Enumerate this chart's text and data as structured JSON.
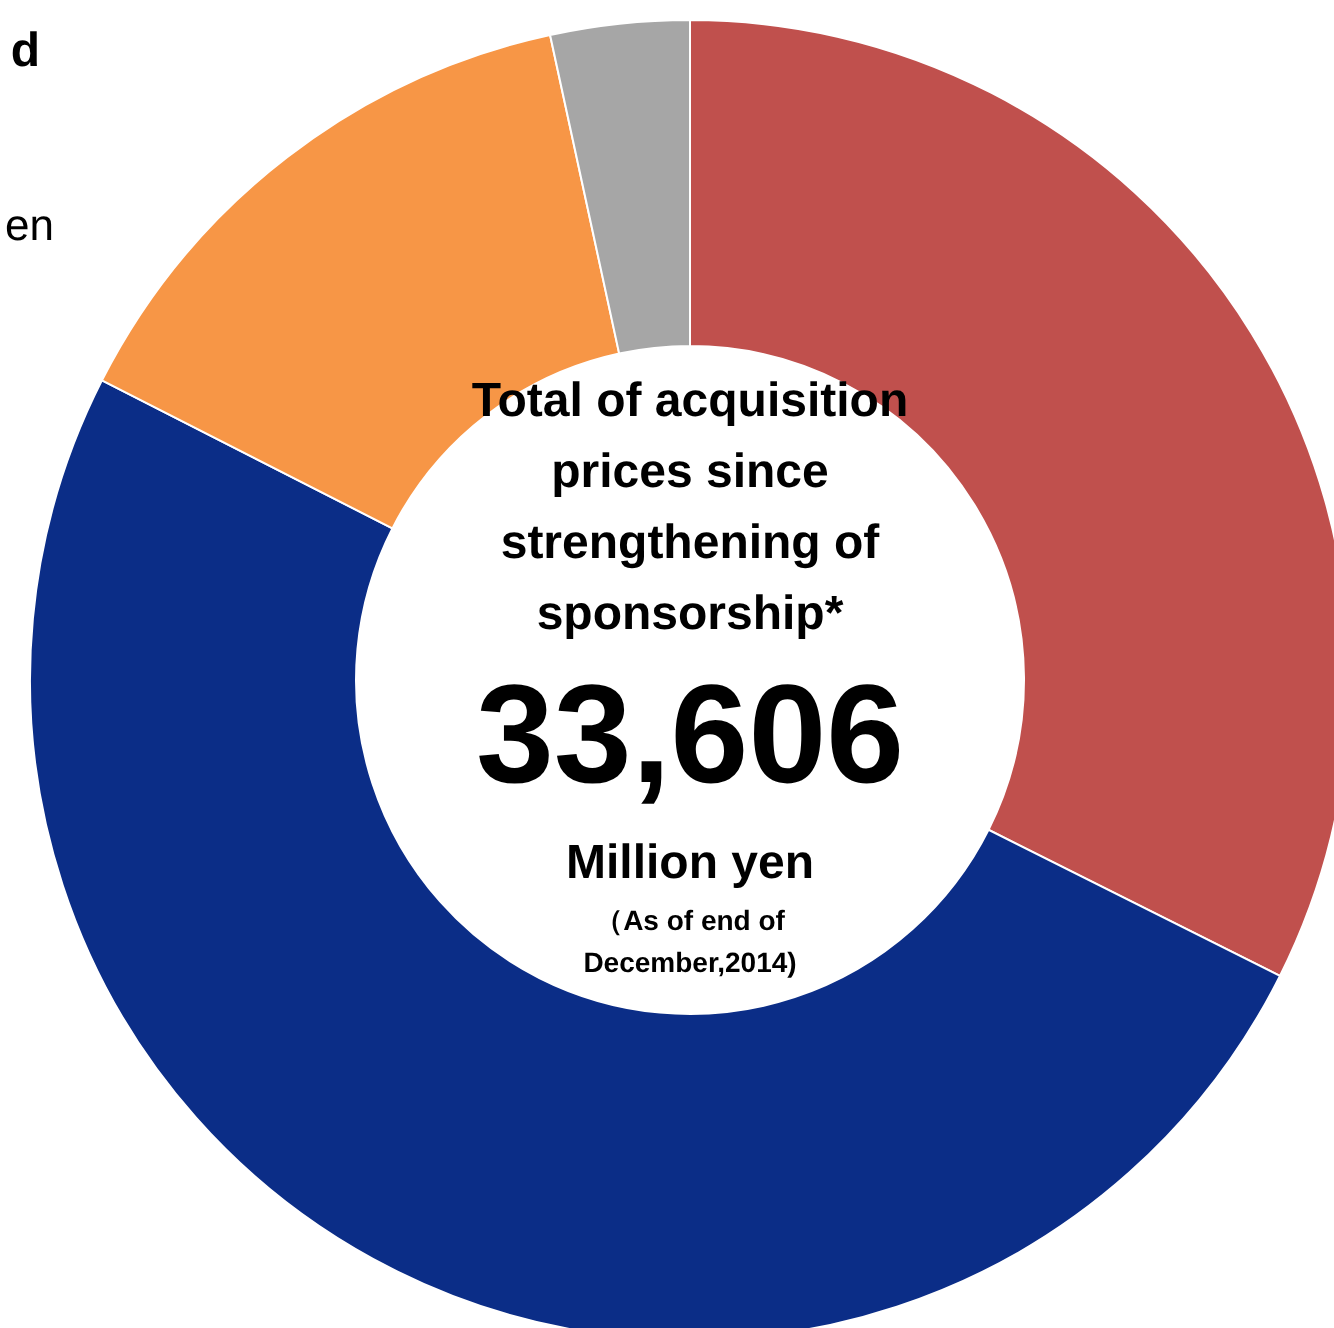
{
  "chart_data": {
    "type": "donut",
    "categories": [
      null,
      null,
      null,
      null
    ],
    "values": [
      32.4,
      50.1,
      14.1,
      3.4
    ],
    "colors": [
      "#c0504d",
      "#0b2d87",
      "#f79646",
      "#a6a6a6"
    ],
    "annotations": [
      "Total of acquisition prices since strengthening of sponsorship*",
      "33,606",
      "Million yen",
      "（As of end of December,2014)",
      "d",
      "en"
    ]
  }
}
